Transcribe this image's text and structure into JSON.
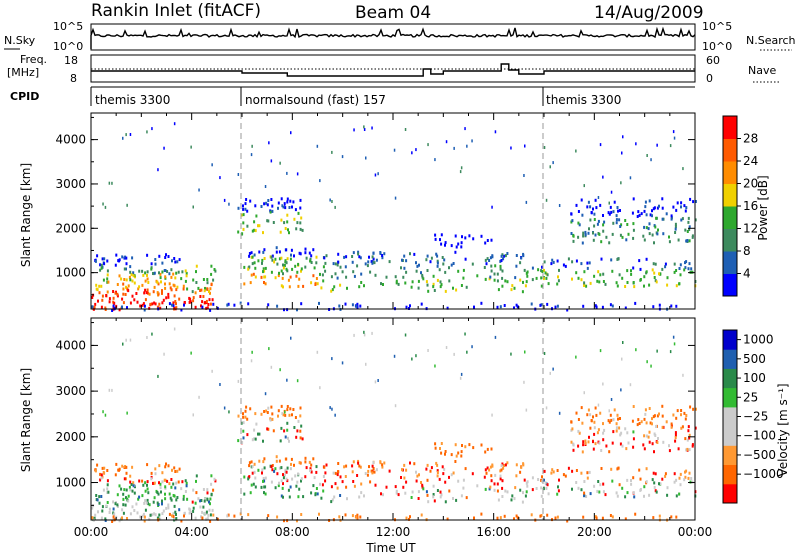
{
  "header": {
    "station": "Rankin Inlet (fitACF)",
    "beam": "Beam 04",
    "date": "14/Aug/2009"
  },
  "noise_panel": {
    "left_label": "N.Sky",
    "right_label": "N.Search",
    "left_ticks": [
      "10^5",
      "10^0"
    ],
    "right_ticks": [
      "10^5",
      "10^0"
    ]
  },
  "freq_panel": {
    "left_label_1": "Freq.",
    "left_label_2": "[MHz]",
    "right_label": "Nave",
    "left_ticks": [
      "18",
      "8"
    ],
    "right_ticks": [
      "60",
      "0"
    ]
  },
  "cpid_panel": {
    "label": "CPID",
    "segments": [
      {
        "start_hour": 0,
        "end_hour": 6,
        "text": "themis 3300"
      },
      {
        "start_hour": 6,
        "end_hour": 18,
        "text": "normalsound (fast) 157"
      },
      {
        "start_hour": 18,
        "end_hour": 24,
        "text": "themis 3300"
      }
    ]
  },
  "colors": {
    "power_scale": [
      "#0000ff",
      "#1e5fb4",
      "#3d8a5e",
      "#2ea82e",
      "#f0d000",
      "#ff8c00",
      "#ff5a00",
      "#ff0000"
    ],
    "velocity_scale": [
      "#ff0000",
      "#ff6600",
      "#ff9933",
      "#cccccc",
      "#cccccc",
      "#33bb33",
      "#2a8a4a",
      "#1f5fb0",
      "#0000cc"
    ]
  },
  "chart_data": [
    {
      "type": "heatmap",
      "name": "power",
      "ylabel": "Slant Range [km]",
      "yticks": [
        1000,
        2000,
        3000,
        4000
      ],
      "ylim": [
        180,
        4600
      ],
      "xlim": [
        0,
        24
      ],
      "colorbar": {
        "label": "Power [dB]",
        "ticks": [
          "4",
          "8",
          "12",
          "16",
          "20",
          "24",
          "28"
        ],
        "range": [
          0,
          32
        ]
      }
    },
    {
      "type": "heatmap",
      "name": "velocity",
      "ylabel": "Slant Range [km]",
      "yticks": [
        1000,
        2000,
        3000,
        4000
      ],
      "ylim": [
        180,
        4600
      ],
      "xlim": [
        0,
        24
      ],
      "colorbar": {
        "label": "Velocity [m s⁻¹]",
        "ticks": [
          "1000",
          "500",
          "100",
          "25",
          "−25",
          "−100",
          "−500",
          "−1000"
        ]
      }
    }
  ],
  "time_axis": {
    "label": "Time UT",
    "ticks": [
      "00:00",
      "04:00",
      "08:00",
      "12:00",
      "16:00",
      "20:00",
      "00:00"
    ]
  }
}
